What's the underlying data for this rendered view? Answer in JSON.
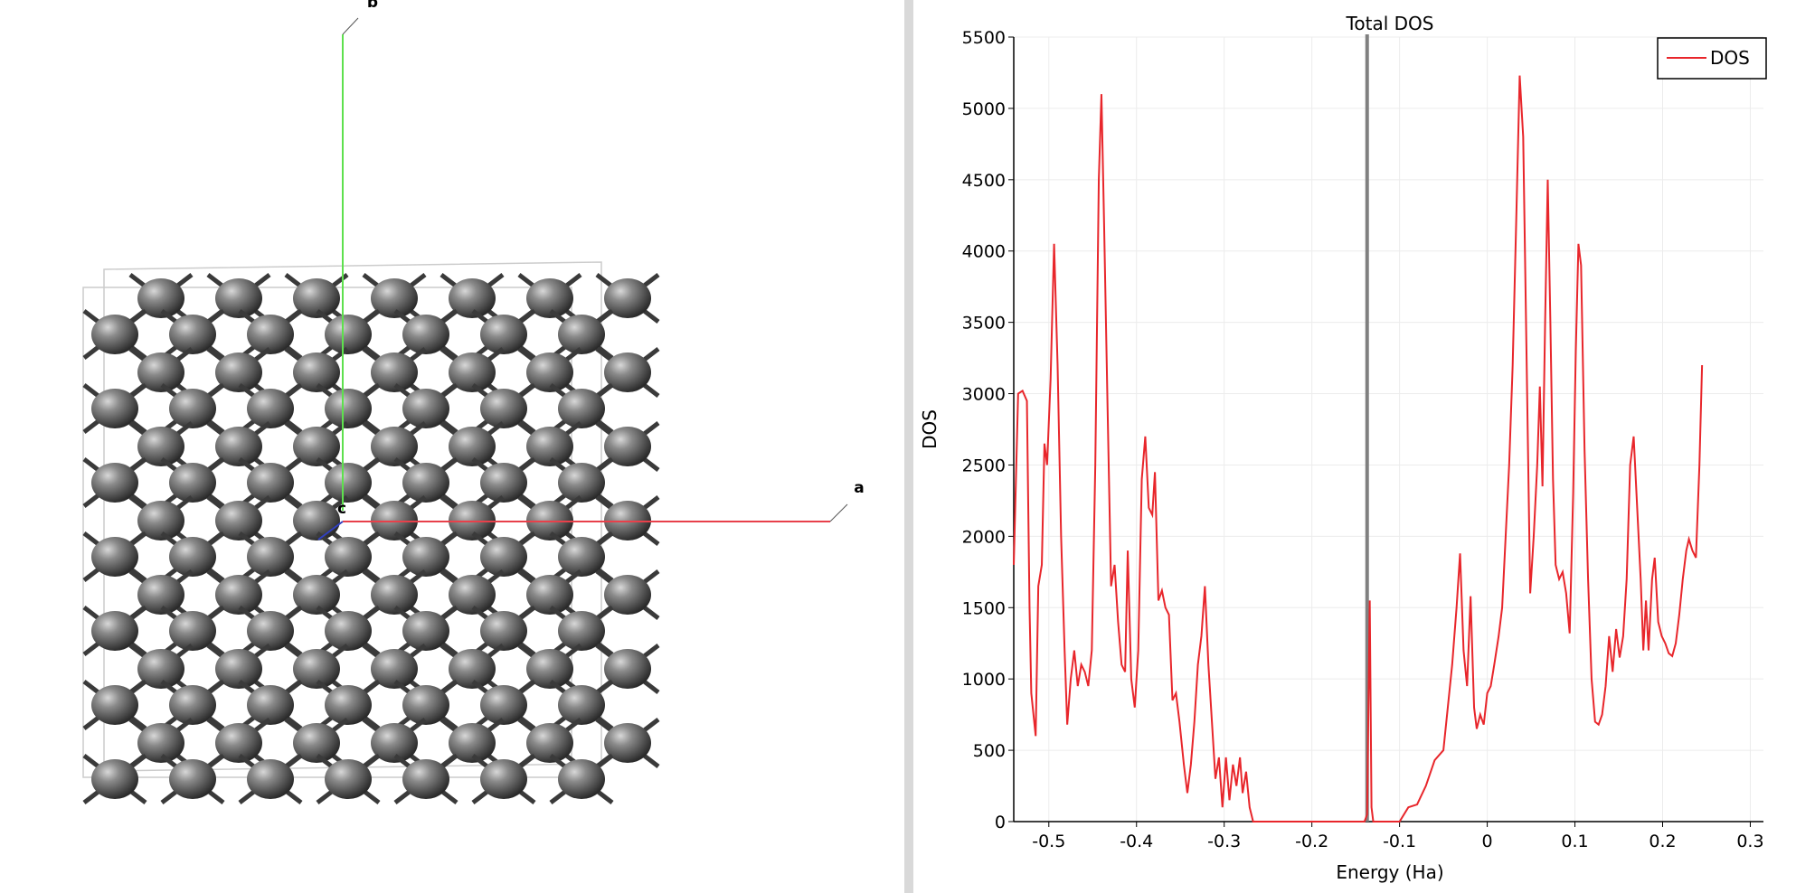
{
  "viewer": {
    "axes": [
      {
        "label": "a"
      },
      {
        "label": "b"
      },
      {
        "label": "c"
      }
    ]
  },
  "chart_data": {
    "type": "line",
    "title": "Total DOS",
    "xlabel": "Energy (Ha)",
    "ylabel": "DOS",
    "x": [
      -0.54,
      -0.535,
      -0.53,
      -0.525,
      -0.522,
      -0.52,
      -0.515,
      -0.512,
      -0.508,
      -0.505,
      -0.502,
      -0.498,
      -0.494,
      -0.49,
      -0.486,
      -0.482,
      -0.479,
      -0.475,
      -0.471,
      -0.467,
      -0.463,
      -0.459,
      -0.455,
      -0.451,
      -0.447,
      -0.443,
      -0.44,
      -0.437,
      -0.433,
      -0.429,
      -0.425,
      -0.421,
      -0.417,
      -0.413,
      -0.41,
      -0.406,
      -0.402,
      -0.398,
      -0.394,
      -0.39,
      -0.386,
      -0.382,
      -0.379,
      -0.375,
      -0.371,
      -0.367,
      -0.363,
      -0.359,
      -0.355,
      -0.351,
      -0.346,
      -0.342,
      -0.338,
      -0.334,
      -0.33,
      -0.326,
      -0.322,
      -0.318,
      -0.314,
      -0.31,
      -0.306,
      -0.302,
      -0.298,
      -0.294,
      -0.29,
      -0.286,
      -0.282,
      -0.279,
      -0.275,
      -0.271,
      -0.267,
      -0.2,
      -0.14,
      -0.137,
      -0.134,
      -0.132,
      -0.13,
      -0.1,
      -0.09,
      -0.08,
      -0.07,
      -0.06,
      -0.05,
      -0.045,
      -0.04,
      -0.035,
      -0.031,
      -0.027,
      -0.023,
      -0.019,
      -0.015,
      -0.012,
      -0.008,
      -0.004,
      0,
      0.004,
      0.008,
      0.013,
      0.017,
      0.021,
      0.025,
      0.029,
      0.033,
      0.037,
      0.041,
      0.045,
      0.049,
      0.053,
      0.057,
      0.06,
      0.063,
      0.066,
      0.069,
      0.072,
      0.075,
      0.078,
      0.082,
      0.086,
      0.09,
      0.094,
      0.098,
      0.101,
      0.104,
      0.107,
      0.111,
      0.115,
      0.119,
      0.123,
      0.127,
      0.131,
      0.135,
      0.139,
      0.143,
      0.147,
      0.151,
      0.155,
      0.159,
      0.163,
      0.167,
      0.171,
      0.175,
      0.178,
      0.181,
      0.184,
      0.188,
      0.191,
      0.195,
      0.199,
      0.203,
      0.207,
      0.211,
      0.215,
      0.219,
      0.223,
      0.227,
      0.23,
      0.234,
      0.238,
      0.242,
      0.245
    ],
    "series": [
      {
        "name": "DOS",
        "color": "#e8262b",
        "values": [
          1800,
          3000,
          3020,
          2950,
          1500,
          900,
          600,
          1650,
          1800,
          2650,
          2500,
          3100,
          4050,
          3200,
          2000,
          1200,
          680,
          1000,
          1200,
          950,
          1100,
          1050,
          950,
          1200,
          2500,
          4500,
          5100,
          4200,
          2900,
          1650,
          1800,
          1400,
          1100,
          1050,
          1900,
          1000,
          800,
          1200,
          2400,
          2700,
          2200,
          2150,
          2450,
          1550,
          1620,
          1500,
          1450,
          850,
          900,
          700,
          400,
          200,
          400,
          700,
          1100,
          1300,
          1650,
          1100,
          700,
          300,
          450,
          100,
          450,
          150,
          400,
          250,
          450,
          200,
          350,
          100,
          0,
          0,
          0,
          50,
          1550,
          100,
          0,
          0,
          100,
          120,
          250,
          430,
          500,
          800,
          1100,
          1500,
          1880,
          1200,
          950,
          1580,
          800,
          650,
          750,
          680,
          900,
          950,
          1100,
          1300,
          1500,
          2000,
          2500,
          3200,
          4200,
          5230,
          4800,
          3200,
          1600,
          2000,
          2500,
          3050,
          2350,
          3500,
          4500,
          3500,
          2400,
          1800,
          1700,
          1750,
          1600,
          1320,
          2300,
          3300,
          4050,
          3900,
          2600,
          1700,
          1000,
          700,
          680,
          750,
          950,
          1300,
          1050,
          1350,
          1150,
          1300,
          1700,
          2500,
          2700,
          2200,
          1700,
          1200,
          1550,
          1200,
          1700,
          1850,
          1400,
          1300,
          1250,
          1180,
          1160,
          1250,
          1450,
          1700,
          1900,
          1980,
          1900,
          1850,
          2500,
          3200
        ]
      }
    ],
    "vline": -0.137,
    "vline_color": "#808080",
    "xlim": [
      -0.54,
      0.315
    ],
    "ylim": [
      0,
      5500
    ],
    "xticks": [
      -0.5,
      -0.4,
      -0.3,
      -0.2,
      -0.1,
      0,
      0.1,
      0.2,
      0.3
    ],
    "yticks": [
      0,
      500,
      1000,
      1500,
      2000,
      2500,
      3000,
      3500,
      4000,
      4500,
      5000,
      5500
    ],
    "grid": true,
    "legend": "upper-right"
  }
}
